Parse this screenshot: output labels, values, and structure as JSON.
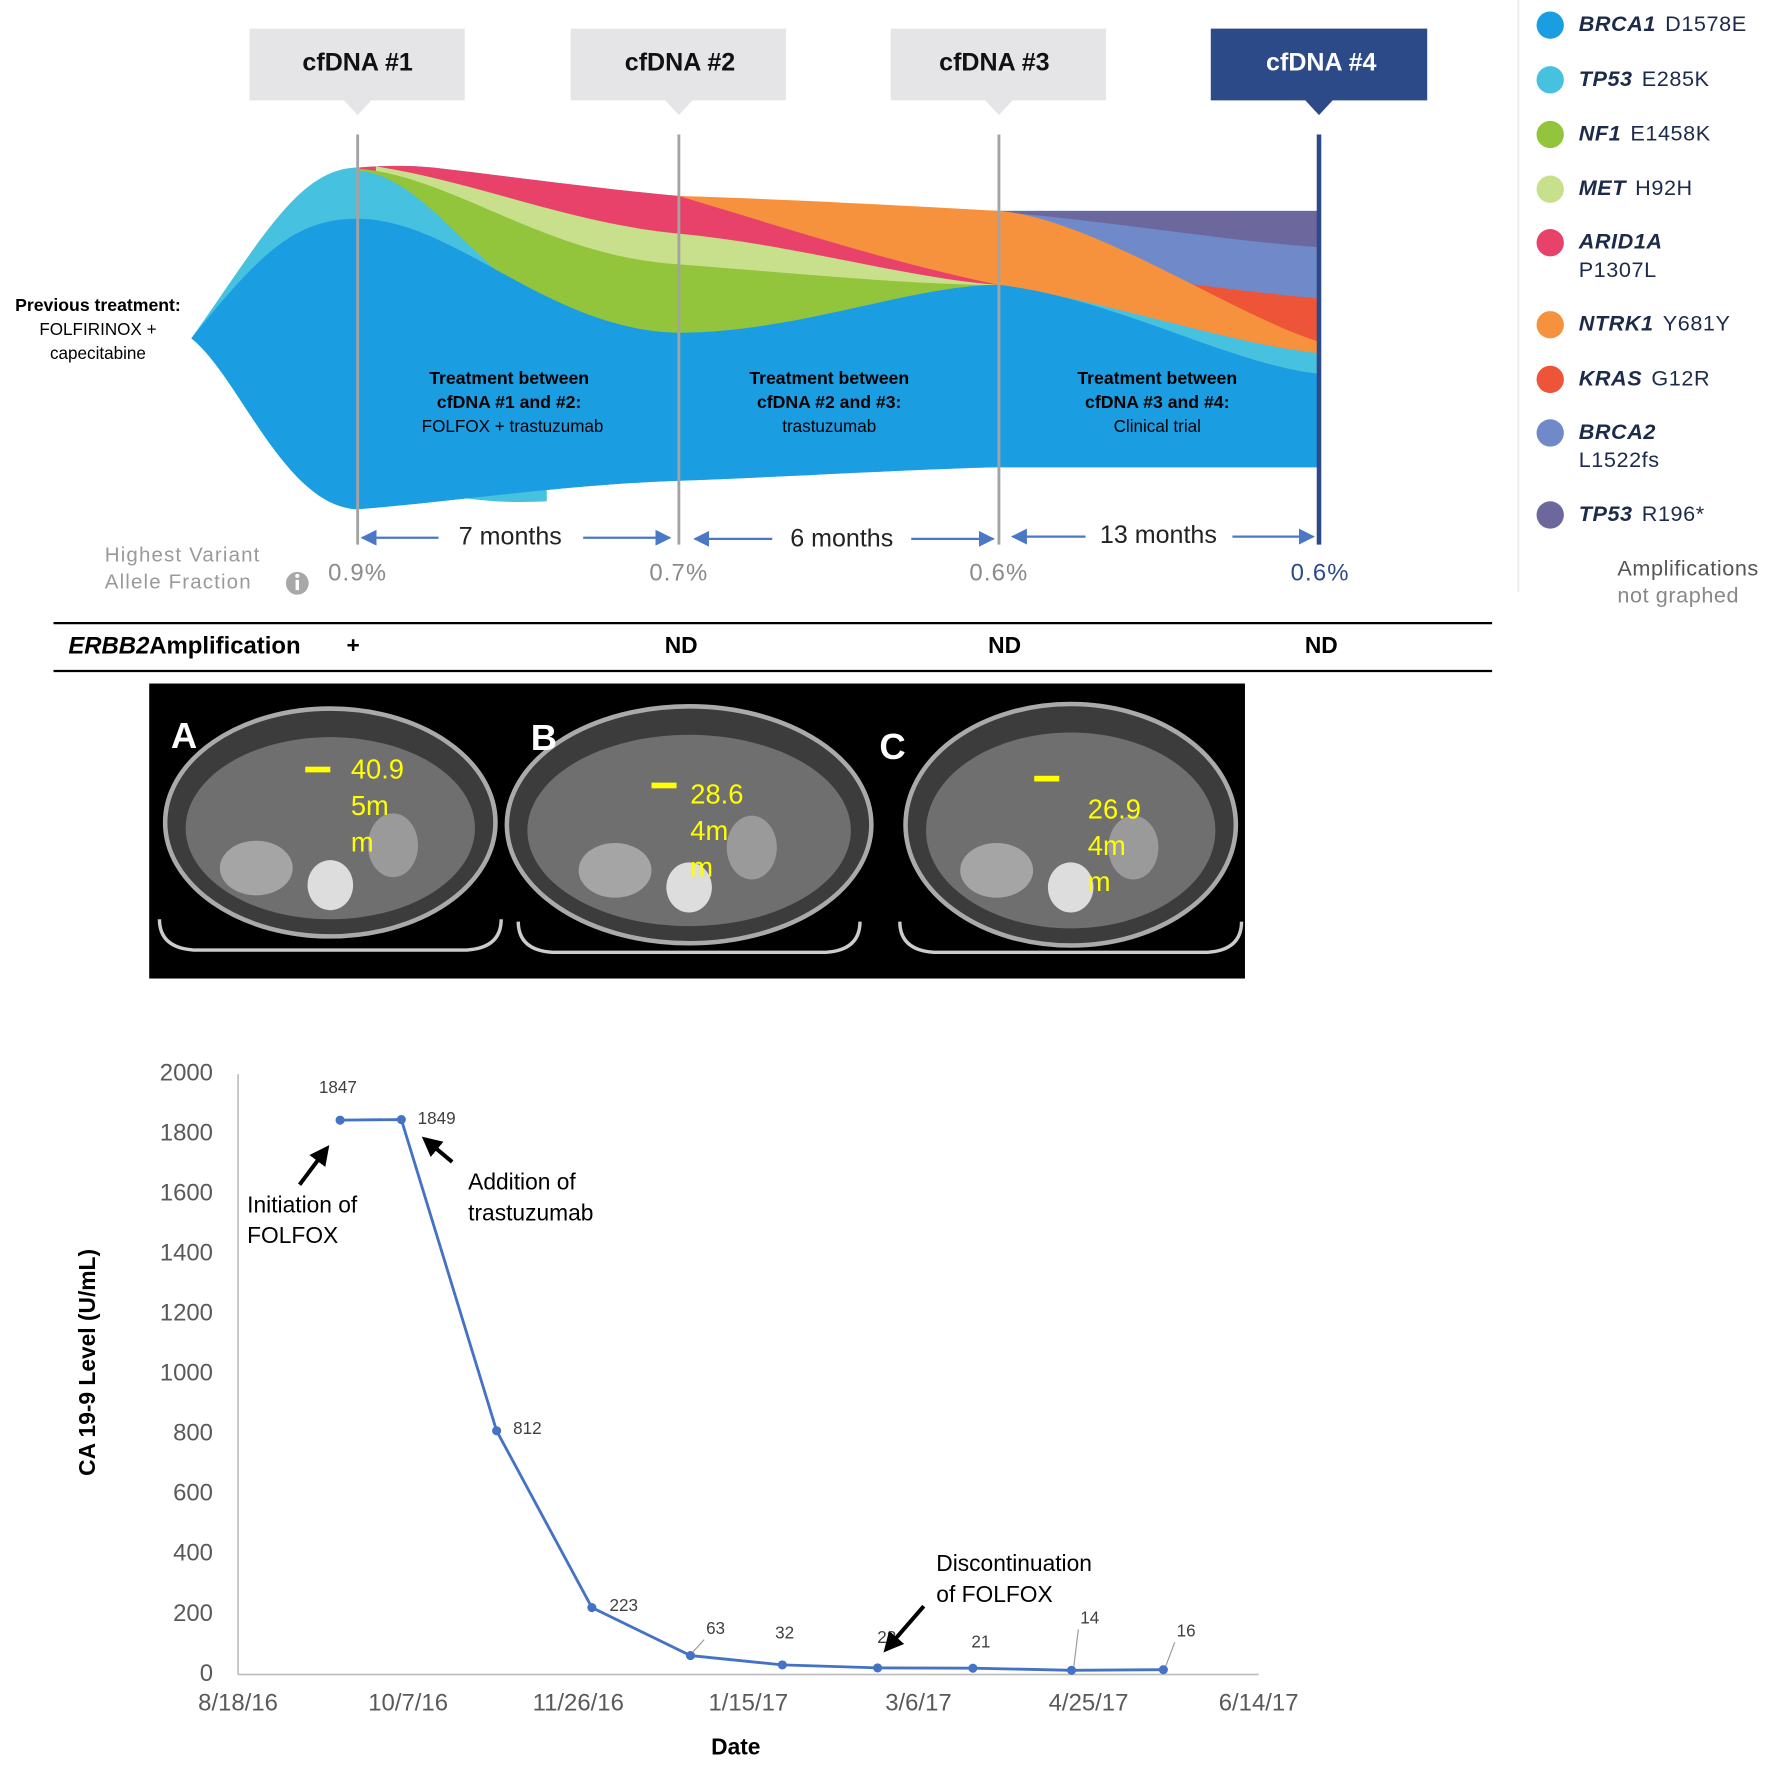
{
  "samples": [
    "cfDNA #1",
    "cfDNA #2",
    "cfDNA #3",
    "cfDNA #4"
  ],
  "previous_treatment": {
    "label": "Previous treatment:",
    "lines": [
      "FOLFIRINOX +",
      "capecitabine"
    ]
  },
  "treatments": [
    {
      "title": [
        "Treatment between",
        "cfDNA #1 and #2:"
      ],
      "drug": "FOLFOX + trastuzumab"
    },
    {
      "title": [
        "Treatment between",
        "cfDNA #2 and #3:"
      ],
      "drug": "trastuzumab"
    },
    {
      "title": [
        "Treatment between",
        "cfDNA #3 and #4:"
      ],
      "drug": "Clinical trial"
    }
  ],
  "intervals": [
    "7 months",
    "6 months",
    "13 months"
  ],
  "vaf_label": [
    "Highest Variant",
    "Allele Fraction"
  ],
  "vaf": [
    "0.9%",
    "0.7%",
    "0.6%",
    "0.6%"
  ],
  "legend": [
    {
      "gene": "BRCA1",
      "variant": [
        "D1578E"
      ],
      "color": "#1b9de2"
    },
    {
      "gene": "TP53",
      "variant": [
        "E285K"
      ],
      "color": "#46c1df"
    },
    {
      "gene": "NF1",
      "variant": [
        "E1458K"
      ],
      "color": "#92c53b"
    },
    {
      "gene": "MET",
      "variant": [
        "H92H"
      ],
      "color": "#c8e08b"
    },
    {
      "gene": "ARID1A",
      "variant": [
        "",
        "P1307L"
      ],
      "color": "#e9426a"
    },
    {
      "gene": "NTRK1",
      "variant": [
        "Y681Y"
      ],
      "color": "#f6913e"
    },
    {
      "gene": "KRAS",
      "variant": [
        "G12R"
      ],
      "color": "#ee5538"
    },
    {
      "gene": "BRCA2",
      "variant": [
        "",
        "L1522fs"
      ],
      "color": "#7089c9"
    },
    {
      "gene": "TP53",
      "variant": [
        "R196*"
      ],
      "color": "#6c689e"
    }
  ],
  "legend_note": [
    "Amplifications",
    "not graphed"
  ],
  "erbb2": {
    "gene": "ERBB2",
    "label": "Amplification",
    "results": [
      "+",
      "ND",
      "ND",
      "ND"
    ]
  },
  "scans": [
    {
      "letter": "A",
      "measurement": [
        "40.9",
        "5m",
        "m"
      ]
    },
    {
      "letter": "B",
      "measurement": [
        "28.6",
        "4m",
        "m"
      ]
    },
    {
      "letter": "C",
      "measurement": [
        "26.9",
        "4m",
        "m"
      ]
    }
  ],
  "chart_data": {
    "type": "line",
    "x": [
      "2016-09-17",
      "2016-10-05",
      "2016-11-02",
      "2016-11-30",
      "2016-12-29",
      "2017-01-25",
      "2017-02-22",
      "2017-03-22",
      "2017-04-20",
      "2017-05-17"
    ],
    "values": [
      1847,
      1849,
      812,
      223,
      63,
      32,
      22,
      21,
      14,
      16
    ],
    "color": "#4472c4",
    "xlabel": "Date",
    "ylabel": "CA 19-9 Level (U/mL)",
    "xlim": [
      "2016-08-18",
      "2017-06-14"
    ],
    "xticks": [
      {
        "value": "2016-08-18",
        "label": "8/18/16"
      },
      {
        "value": "2016-10-07",
        "label": "10/7/16"
      },
      {
        "value": "2016-11-26",
        "label": "11/26/16"
      },
      {
        "value": "2017-01-15",
        "label": "1/15/17"
      },
      {
        "value": "2017-03-06",
        "label": "3/6/17"
      },
      {
        "value": "2017-04-25",
        "label": "4/25/17"
      },
      {
        "value": "2017-06-14",
        "label": "6/14/17"
      }
    ],
    "ylim": [
      0,
      2000
    ],
    "yticks": [
      0,
      200,
      400,
      600,
      800,
      1000,
      1200,
      1400,
      1600,
      1800,
      2000
    ],
    "annotations": [
      {
        "text": [
          "Initiation of",
          "FOLFOX"
        ]
      },
      {
        "text": [
          "Addition of",
          "trastuzumab"
        ]
      },
      {
        "text": [
          "Discontinuation",
          "of FOLFOX"
        ]
      }
    ]
  }
}
